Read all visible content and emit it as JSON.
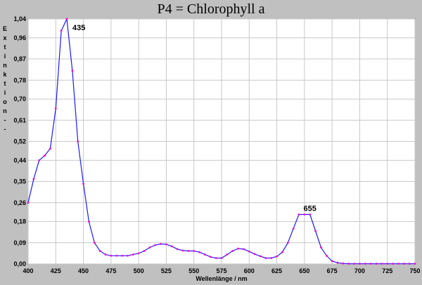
{
  "chart_data": {
    "type": "line",
    "title": "P4 = Chlorophyll a",
    "xlabel": "Wellenlänge / nm",
    "ylabel": "E x t i n k t i o n  -  -",
    "xlim": [
      400,
      750
    ],
    "ylim": [
      0,
      1.04
    ],
    "x_ticks": [
      "400",
      "425",
      "450",
      "475",
      "500",
      "525",
      "550",
      "575",
      "600",
      "625",
      "650",
      "675",
      "700",
      "725",
      "750"
    ],
    "y_ticks": [
      "0,00",
      "0,09",
      "0,18",
      "0,26",
      "0,35",
      "0,44",
      "0,52",
      "0,61",
      "0,70",
      "0,78",
      "0,87",
      "0,96",
      "1,04"
    ],
    "grid": true,
    "colors": {
      "line": "#1a1aff",
      "marker": "#ff00cc",
      "background": "#ffffff",
      "frame": "#c0c0c0"
    },
    "series": [
      {
        "x": [
          400,
          405,
          410,
          415,
          420,
          425,
          430,
          435,
          440,
          445,
          450,
          455,
          460,
          465,
          470,
          475,
          480,
          485,
          490,
          495,
          500,
          505,
          510,
          515,
          520,
          525,
          530,
          535,
          540,
          545,
          550,
          555,
          560,
          565,
          570,
          575,
          580,
          585,
          590,
          595,
          600,
          605,
          610,
          615,
          620,
          625,
          630,
          635,
          640,
          645,
          650,
          655,
          660,
          665,
          670,
          675,
          680,
          685,
          690,
          695,
          700,
          705,
          710,
          715,
          720,
          725,
          730,
          735,
          740,
          745,
          750
        ],
        "y": [
          0.26,
          0.36,
          0.44,
          0.46,
          0.49,
          0.66,
          0.99,
          1.04,
          0.82,
          0.52,
          0.34,
          0.18,
          0.09,
          0.055,
          0.04,
          0.035,
          0.035,
          0.035,
          0.035,
          0.04,
          0.045,
          0.055,
          0.07,
          0.08,
          0.085,
          0.083,
          0.075,
          0.063,
          0.057,
          0.055,
          0.055,
          0.05,
          0.04,
          0.03,
          0.025,
          0.025,
          0.04,
          0.055,
          0.065,
          0.063,
          0.053,
          0.042,
          0.033,
          0.025,
          0.025,
          0.032,
          0.05,
          0.09,
          0.15,
          0.21,
          0.21,
          0.21,
          0.14,
          0.07,
          0.035,
          0.012,
          0.005,
          0.002,
          0.001,
          0.001,
          0.001,
          0.001,
          0.001,
          0.001,
          0.001,
          0.001,
          0.001,
          0.001,
          0.001,
          0.001,
          0.001
        ]
      }
    ],
    "annotations": [
      {
        "text": "435",
        "x": 435,
        "y": 1.04
      },
      {
        "text": "655",
        "x": 655,
        "y": 0.21
      }
    ]
  }
}
